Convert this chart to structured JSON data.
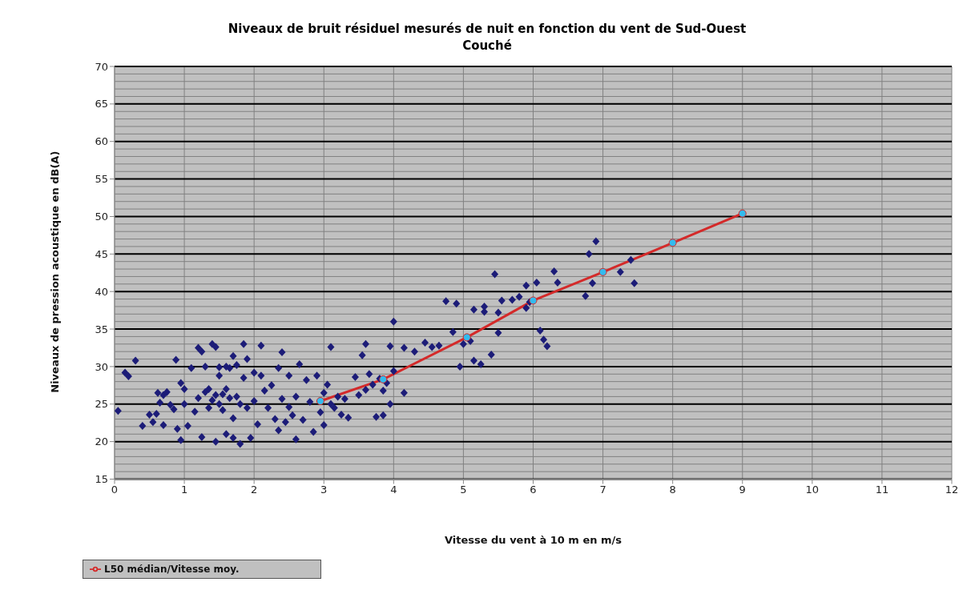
{
  "chart_data": {
    "type": "scatter",
    "title": "Niveaux de bruit  résiduel mesurés de nuit en fonction du vent de Sud-Ouest",
    "subtitle": "Couché",
    "xlabel": "Vitesse du vent  à 10 m en m/s",
    "ylabel": "Niveaux de pression acoustique en dB(A)",
    "xlim": [
      0,
      12
    ],
    "xticks": [
      0,
      1,
      2,
      3,
      4,
      5,
      6,
      7,
      8,
      9,
      10,
      11,
      12
    ],
    "ylim": [
      15,
      70
    ],
    "yticks": [
      15,
      20,
      25,
      30,
      35,
      40,
      45,
      50,
      55,
      60,
      65,
      70
    ],
    "grid": true,
    "legend": "bottom left",
    "series": [
      {
        "color": "#1c1c78",
        "marker": "diamond",
        "x": [
          0.05,
          0.15,
          0.2,
          0.3,
          0.4,
          0.5,
          0.55,
          0.6,
          0.62,
          0.65,
          0.7,
          0.7,
          0.75,
          0.8,
          0.85,
          0.88,
          0.9,
          0.95,
          0.95,
          1.0,
          1.0,
          1.05,
          1.1,
          1.15,
          1.2,
          1.2,
          1.25,
          1.25,
          1.3,
          1.3,
          1.35,
          1.35,
          1.4,
          1.4,
          1.45,
          1.45,
          1.45,
          1.5,
          1.5,
          1.5,
          1.55,
          1.55,
          1.6,
          1.6,
          1.6,
          1.65,
          1.65,
          1.7,
          1.7,
          1.7,
          1.75,
          1.75,
          1.8,
          1.8,
          1.85,
          1.85,
          1.9,
          1.9,
          1.95,
          2.0,
          2.0,
          2.05,
          2.1,
          2.1,
          2.15,
          2.2,
          2.25,
          2.3,
          2.35,
          2.35,
          2.4,
          2.4,
          2.45,
          2.5,
          2.5,
          2.55,
          2.6,
          2.6,
          2.65,
          2.7,
          2.75,
          2.8,
          2.85,
          2.9,
          2.95,
          3.0,
          3.0,
          3.05,
          3.1,
          3.1,
          3.15,
          3.2,
          3.25,
          3.3,
          3.35,
          3.45,
          3.5,
          3.55,
          3.6,
          3.6,
          3.65,
          3.7,
          3.75,
          3.8,
          3.85,
          3.85,
          3.9,
          3.95,
          3.95,
          4.0,
          4.0,
          4.15,
          4.15,
          4.3,
          4.45,
          4.55,
          4.65,
          4.75,
          4.85,
          4.9,
          4.95,
          5.0,
          5.1,
          5.15,
          5.15,
          5.25,
          5.3,
          5.3,
          5.4,
          5.45,
          5.5,
          5.5,
          5.55,
          5.7,
          5.8,
          5.9,
          5.9,
          5.95,
          6.05,
          6.1,
          6.15,
          6.2,
          6.3,
          6.35,
          6.75,
          6.8,
          6.85,
          6.9,
          7.25,
          7.4,
          7.45
        ],
        "values": [
          24.1,
          29.2,
          28.7,
          30.8,
          22.1,
          23.6,
          22.6,
          23.7,
          26.5,
          25.2,
          26.2,
          22.2,
          26.6,
          24.9,
          24.3,
          30.9,
          21.7,
          20.2,
          27.8,
          27.0,
          25.0,
          22.1,
          29.8,
          24.0,
          25.8,
          32.5,
          32.0,
          20.6,
          26.6,
          30.0,
          27.0,
          24.5,
          33.0,
          25.5,
          32.6,
          26.2,
          20.0,
          29.9,
          28.8,
          25.0,
          26.3,
          24.2,
          27.0,
          30.0,
          21.0,
          25.8,
          29.8,
          31.4,
          23.1,
          20.5,
          26.0,
          30.2,
          25.0,
          19.7,
          33.0,
          28.5,
          24.5,
          31.0,
          20.5,
          25.4,
          29.2,
          22.3,
          32.8,
          28.8,
          26.8,
          24.5,
          27.5,
          23.0,
          29.8,
          21.5,
          31.9,
          25.7,
          22.6,
          24.6,
          28.8,
          23.5,
          26.0,
          20.3,
          30.3,
          22.9,
          28.2,
          25.3,
          21.3,
          28.8,
          23.9,
          26.5,
          22.2,
          27.6,
          32.6,
          25.0,
          24.5,
          26.0,
          23.6,
          25.7,
          23.2,
          28.6,
          26.2,
          31.5,
          33.0,
          26.9,
          29.0,
          27.6,
          23.3,
          28.4,
          23.5,
          26.8,
          27.8,
          32.7,
          25.0,
          29.4,
          36.0,
          26.5,
          32.5,
          32.0,
          33.2,
          32.6,
          32.8,
          38.7,
          34.6,
          38.4,
          30.0,
          33.0,
          33.4,
          37.6,
          30.8,
          30.3,
          38.0,
          37.3,
          31.6,
          42.3,
          37.2,
          34.5,
          38.8,
          38.9,
          39.3,
          37.8,
          40.8,
          38.6,
          41.2,
          34.8,
          33.6,
          32.7,
          42.7,
          41.2,
          39.4,
          45.0,
          41.1,
          46.7,
          42.6,
          44.2,
          41.1
        ]
      },
      {
        "type": "line",
        "name": "L50 médian/Vitesse moy.",
        "color": "#d42a2a",
        "marker": "circle",
        "line_style": "solid",
        "x": [
          2.95,
          3.85,
          5.05,
          6.0,
          7.0,
          8.0,
          9.0
        ],
        "values": [
          25.4,
          28.3,
          33.9,
          38.8,
          42.6,
          46.5,
          50.4
        ]
      }
    ]
  }
}
